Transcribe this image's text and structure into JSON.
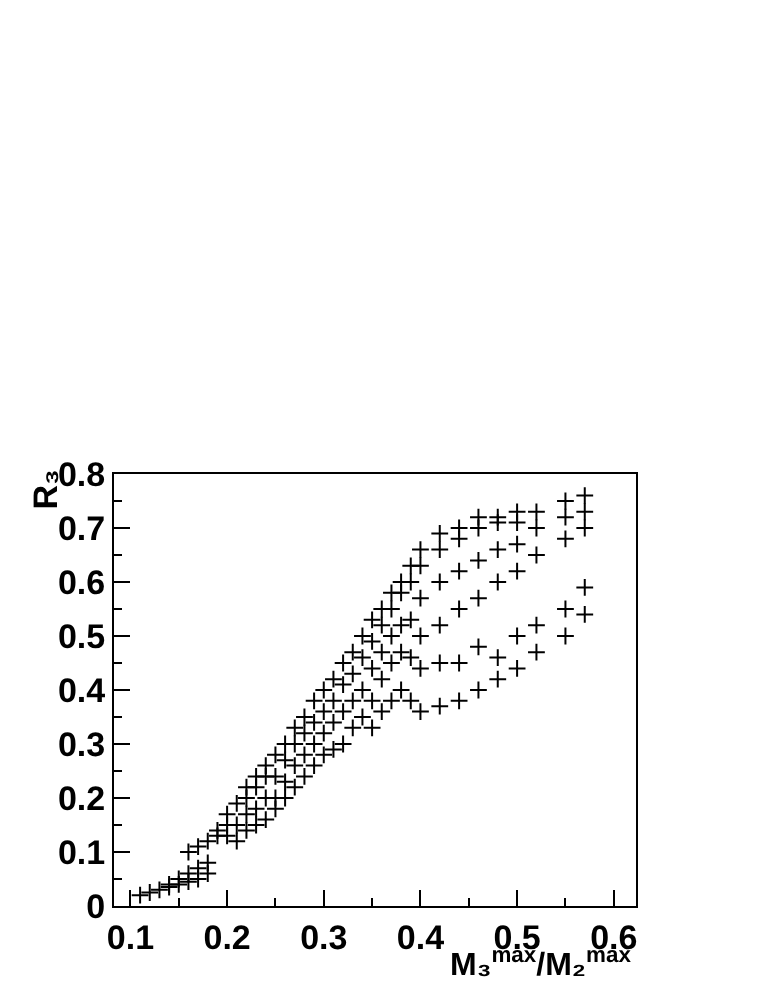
{
  "chart_data": {
    "type": "scatter",
    "xlabel": "M₃$^{max}$/M₂$^{max}$",
    "ylabel": "R₃",
    "marker": "cross",
    "xlim": [
      0.083,
      0.623
    ],
    "xticks": [
      0.1,
      0.2,
      0.3,
      0.4,
      0.5,
      0.6
    ],
    "ylim": [
      0,
      0.8
    ],
    "yticks": [
      0,
      0.1,
      0.2,
      0.3,
      0.4,
      0.5,
      0.6,
      0.7,
      0.8
    ],
    "series": [
      {
        "color": "#000000",
        "x": [
          0.11,
          0.12,
          0.13,
          0.14,
          0.14,
          0.15,
          0.15,
          0.16,
          0.16,
          0.16,
          0.17,
          0.17,
          0.17,
          0.18,
          0.18,
          0.18,
          0.19,
          0.19,
          0.2,
          0.2,
          0.2,
          0.21,
          0.21,
          0.21,
          0.22,
          0.22,
          0.22,
          0.22,
          0.23,
          0.23,
          0.23,
          0.23,
          0.24,
          0.24,
          0.24,
          0.24,
          0.25,
          0.25,
          0.25,
          0.25,
          0.26,
          0.26,
          0.26,
          0.26,
          0.27,
          0.27,
          0.27,
          0.27,
          0.28,
          0.28,
          0.28,
          0.28,
          0.29,
          0.29,
          0.29,
          0.29,
          0.3,
          0.3,
          0.3,
          0.3,
          0.31,
          0.31,
          0.31,
          0.31,
          0.32,
          0.32,
          0.32,
          0.32,
          0.33,
          0.33,
          0.33,
          0.33,
          0.34,
          0.34,
          0.34,
          0.34,
          0.35,
          0.35,
          0.35,
          0.35,
          0.35,
          0.36,
          0.36,
          0.36,
          0.36,
          0.36,
          0.37,
          0.37,
          0.37,
          0.37,
          0.37,
          0.38,
          0.38,
          0.38,
          0.38,
          0.38,
          0.39,
          0.39,
          0.39,
          0.39,
          0.39,
          0.4,
          0.4,
          0.4,
          0.4,
          0.4,
          0.4,
          0.42,
          0.42,
          0.42,
          0.42,
          0.42,
          0.42,
          0.44,
          0.44,
          0.44,
          0.44,
          0.44,
          0.44,
          0.46,
          0.46,
          0.46,
          0.46,
          0.46,
          0.46,
          0.48,
          0.48,
          0.48,
          0.48,
          0.48,
          0.48,
          0.5,
          0.5,
          0.5,
          0.5,
          0.5,
          0.5,
          0.52,
          0.52,
          0.52,
          0.52,
          0.52,
          0.55,
          0.55,
          0.55,
          0.55,
          0.55,
          0.57,
          0.57,
          0.57,
          0.57,
          0.57
        ],
        "values": [
          0.02,
          0.025,
          0.03,
          0.035,
          0.04,
          0.04,
          0.05,
          0.045,
          0.06,
          0.1,
          0.05,
          0.07,
          0.11,
          0.06,
          0.08,
          0.12,
          0.13,
          0.14,
          0.13,
          0.15,
          0.17,
          0.12,
          0.15,
          0.19,
          0.14,
          0.17,
          0.2,
          0.22,
          0.15,
          0.18,
          0.22,
          0.24,
          0.16,
          0.2,
          0.24,
          0.26,
          0.18,
          0.2,
          0.24,
          0.28,
          0.2,
          0.23,
          0.27,
          0.3,
          0.22,
          0.26,
          0.3,
          0.33,
          0.24,
          0.28,
          0.32,
          0.35,
          0.26,
          0.3,
          0.34,
          0.38,
          0.28,
          0.32,
          0.36,
          0.4,
          0.29,
          0.34,
          0.38,
          0.42,
          0.3,
          0.36,
          0.41,
          0.45,
          0.33,
          0.38,
          0.43,
          0.47,
          0.35,
          0.4,
          0.46,
          0.5,
          0.33,
          0.38,
          0.44,
          0.49,
          0.53,
          0.36,
          0.42,
          0.47,
          0.52,
          0.55,
          0.38,
          0.45,
          0.5,
          0.55,
          0.58,
          0.4,
          0.47,
          0.52,
          0.58,
          0.6,
          0.38,
          0.46,
          0.53,
          0.6,
          0.63,
          0.36,
          0.44,
          0.5,
          0.57,
          0.63,
          0.66,
          0.37,
          0.45,
          0.52,
          0.6,
          0.66,
          0.69,
          0.38,
          0.45,
          0.55,
          0.62,
          0.68,
          0.7,
          0.4,
          0.48,
          0.57,
          0.64,
          0.7,
          0.72,
          0.42,
          0.46,
          0.6,
          0.66,
          0.71,
          0.72,
          0.44,
          0.5,
          0.62,
          0.67,
          0.71,
          0.73,
          0.47,
          0.52,
          0.65,
          0.7,
          0.73,
          0.5,
          0.55,
          0.68,
          0.72,
          0.75,
          0.54,
          0.59,
          0.7,
          0.73,
          0.76
        ]
      }
    ]
  }
}
